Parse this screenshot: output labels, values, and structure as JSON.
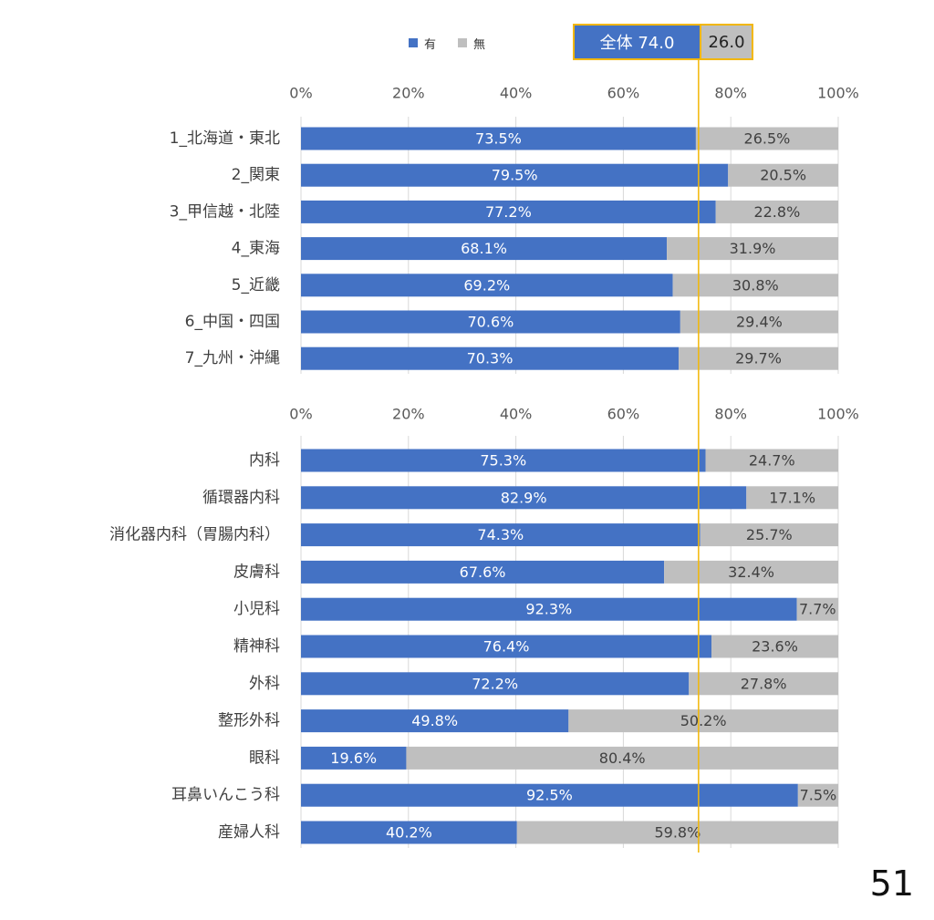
{
  "legend": {
    "yes_label": "有",
    "no_label": "無",
    "yes_color": "#4472c4",
    "no_color": "#bfbfbf"
  },
  "overall": {
    "yes_text": "全体 74.0",
    "no_text": "26.0",
    "yes_value": 74.0,
    "border_color": "#f2b705"
  },
  "page_number": "51",
  "chart_data": [
    {
      "type": "bar",
      "orientation": "horizontal",
      "stacked": "percent",
      "categories": [
        "1_北海道・東北",
        "2_関東",
        "3_甲信越・北陸",
        "4_東海",
        "5_近畿",
        "6_中国・四国",
        "7_九州・沖縄"
      ],
      "series": [
        {
          "name": "有",
          "values": [
            73.5,
            79.5,
            77.2,
            68.1,
            69.2,
            70.6,
            70.3
          ],
          "labels": [
            "73.5%",
            "79.5%",
            "77.2%",
            "68.1%",
            "69.2%",
            "70.6%",
            "70.3%"
          ]
        },
        {
          "name": "無",
          "values": [
            26.5,
            20.5,
            22.8,
            31.9,
            30.8,
            29.4,
            29.7
          ],
          "labels": [
            "26.5%",
            "20.5%",
            "22.8%",
            "31.9%",
            "30.8%",
            "29.4%",
            "29.7%"
          ]
        }
      ],
      "xlim": [
        0,
        100
      ],
      "xticks": [
        "0%",
        "20%",
        "40%",
        "60%",
        "80%",
        "100%"
      ],
      "reference_line": 74.0,
      "grid": true
    },
    {
      "type": "bar",
      "orientation": "horizontal",
      "stacked": "percent",
      "categories": [
        "内科",
        "循環器内科",
        "消化器内科（胃腸内科）",
        "皮膚科",
        "小児科",
        "精神科",
        "外科",
        "整形外科",
        "眼科",
        "耳鼻いんこう科",
        "産婦人科"
      ],
      "series": [
        {
          "name": "有",
          "values": [
            75.3,
            82.9,
            74.3,
            67.6,
            92.3,
            76.4,
            72.2,
            49.8,
            19.6,
            92.5,
            40.2
          ],
          "labels": [
            "75.3%",
            "82.9%",
            "74.3%",
            "67.6%",
            "92.3%",
            "76.4%",
            "72.2%",
            "49.8%",
            "19.6%",
            "92.5%",
            "40.2%"
          ]
        },
        {
          "name": "無",
          "values": [
            24.7,
            17.1,
            25.7,
            32.4,
            7.7,
            23.6,
            27.8,
            50.2,
            80.4,
            7.5,
            59.8
          ],
          "labels": [
            "24.7%",
            "17.1%",
            "25.7%",
            "32.4%",
            "7.7%",
            "23.6%",
            "27.8%",
            "50.2%",
            "80.4%",
            "7.5%",
            "59.8%"
          ]
        }
      ],
      "xlim": [
        0,
        100
      ],
      "xticks": [
        "0%",
        "20%",
        "40%",
        "60%",
        "80%",
        "100%"
      ],
      "reference_line": 74.0,
      "grid": true
    }
  ]
}
